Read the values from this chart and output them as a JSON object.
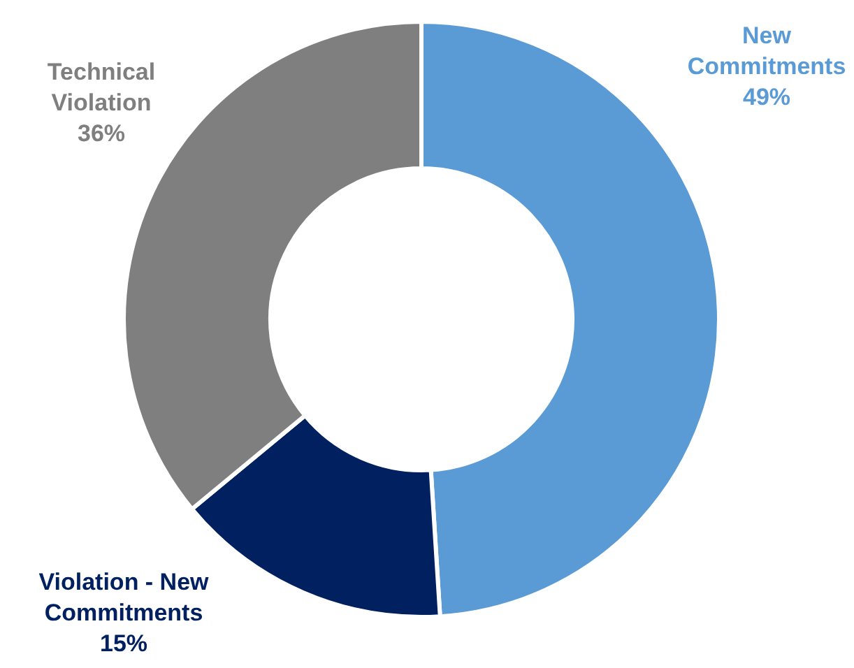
{
  "chart_data": {
    "type": "donut",
    "categories": [
      "New Commitments",
      "Violation - New Commitments",
      "Technical Violation"
    ],
    "values": [
      49,
      15,
      36
    ],
    "value_labels": [
      "49%",
      "15%",
      "36%"
    ],
    "colors": [
      "#5b9bd5",
      "#002060",
      "#7f7f7f"
    ]
  }
}
